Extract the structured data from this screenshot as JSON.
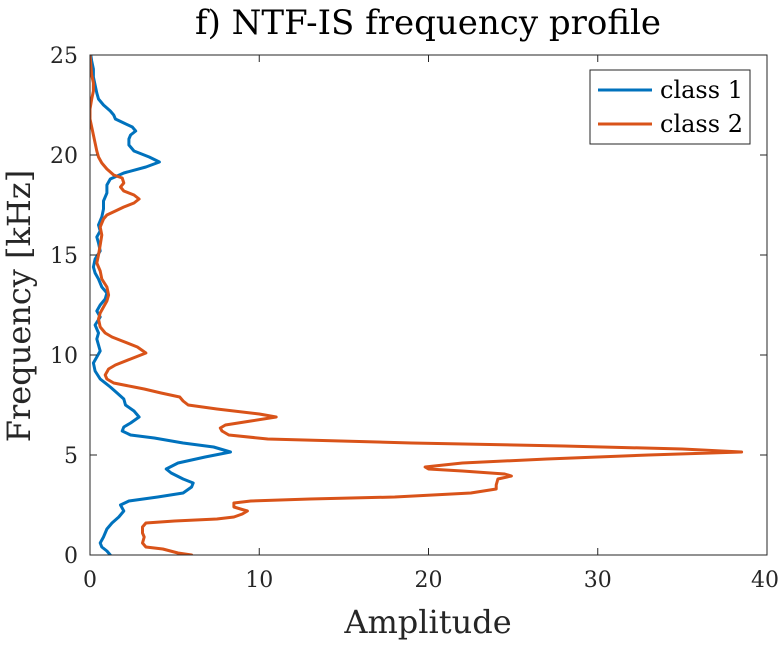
{
  "chart_data": {
    "type": "line",
    "orientation": "x-amplitude-vs-y-frequency",
    "title": "f) NTF-IS frequency profile",
    "xlabel": "Amplitude",
    "ylabel": "Frequency [kHz]",
    "xlim": [
      0,
      40
    ],
    "ylim": [
      0,
      25
    ],
    "xticks": [
      "0",
      "10",
      "20",
      "30",
      "40"
    ],
    "yticks": [
      "0",
      "5",
      "10",
      "15",
      "20",
      "25"
    ],
    "grid": false,
    "legend_position": "top-right",
    "series": [
      {
        "name": "class 1",
        "color": "#0072BD",
        "points": [
          [
            1.2,
            0.0
          ],
          [
            1.0,
            0.2
          ],
          [
            0.7,
            0.4
          ],
          [
            0.6,
            0.6
          ],
          [
            0.8,
            0.9
          ],
          [
            1.0,
            1.3
          ],
          [
            1.3,
            1.6
          ],
          [
            1.7,
            1.9
          ],
          [
            2.0,
            2.2
          ],
          [
            1.8,
            2.5
          ],
          [
            2.3,
            2.7
          ],
          [
            4.0,
            2.9
          ],
          [
            5.5,
            3.1
          ],
          [
            6.0,
            3.4
          ],
          [
            6.1,
            3.6
          ],
          [
            5.5,
            3.8
          ],
          [
            4.8,
            4.1
          ],
          [
            4.5,
            4.3
          ],
          [
            5.2,
            4.6
          ],
          [
            6.8,
            4.9
          ],
          [
            8.3,
            5.15
          ],
          [
            7.3,
            5.4
          ],
          [
            5.5,
            5.6
          ],
          [
            3.8,
            5.85
          ],
          [
            2.4,
            6.0
          ],
          [
            1.9,
            6.2
          ],
          [
            2.0,
            6.4
          ],
          [
            2.4,
            6.6
          ],
          [
            2.9,
            6.9
          ],
          [
            2.6,
            7.2
          ],
          [
            2.1,
            7.5
          ],
          [
            2.0,
            7.8
          ],
          [
            1.6,
            8.1
          ],
          [
            1.2,
            8.4
          ],
          [
            0.6,
            8.8
          ],
          [
            0.3,
            9.2
          ],
          [
            0.2,
            9.6
          ],
          [
            0.4,
            9.9
          ],
          [
            0.6,
            10.2
          ],
          [
            0.5,
            10.5
          ],
          [
            0.4,
            10.8
          ],
          [
            0.5,
            11.1
          ],
          [
            0.3,
            11.5
          ],
          [
            0.6,
            11.9
          ],
          [
            0.4,
            12.2
          ],
          [
            0.6,
            12.5
          ],
          [
            0.9,
            12.8
          ],
          [
            1.0,
            13.1
          ],
          [
            0.7,
            13.4
          ],
          [
            0.5,
            13.8
          ],
          [
            0.3,
            14.1
          ],
          [
            0.2,
            14.4
          ],
          [
            0.3,
            14.8
          ],
          [
            0.6,
            15.2
          ],
          [
            0.5,
            15.6
          ],
          [
            0.4,
            15.9
          ],
          [
            0.6,
            16.2
          ],
          [
            0.5,
            16.5
          ],
          [
            0.7,
            16.9
          ],
          [
            0.8,
            17.3
          ],
          [
            0.8,
            17.7
          ],
          [
            1.0,
            18.1
          ],
          [
            1.0,
            18.5
          ],
          [
            1.2,
            18.8
          ],
          [
            2.0,
            19.1
          ],
          [
            3.3,
            19.4
          ],
          [
            4.1,
            19.65
          ],
          [
            3.5,
            19.9
          ],
          [
            2.6,
            20.2
          ],
          [
            2.3,
            20.5
          ],
          [
            2.3,
            20.8
          ],
          [
            2.4,
            21.0
          ],
          [
            2.7,
            21.2
          ],
          [
            2.5,
            21.4
          ],
          [
            2.0,
            21.6
          ],
          [
            1.5,
            21.8
          ],
          [
            1.4,
            22.0
          ],
          [
            1.2,
            22.2
          ],
          [
            0.8,
            22.5
          ],
          [
            0.5,
            22.8
          ],
          [
            0.4,
            23.1
          ],
          [
            0.3,
            23.5
          ],
          [
            0.2,
            23.9
          ],
          [
            0.2,
            24.3
          ],
          [
            0.1,
            24.7
          ],
          [
            0.05,
            25.0
          ]
        ]
      },
      {
        "name": "class 2",
        "color": "#D95319",
        "points": [
          [
            6.0,
            0.0
          ],
          [
            5.2,
            0.1
          ],
          [
            4.3,
            0.3
          ],
          [
            3.3,
            0.4
          ],
          [
            3.1,
            0.6
          ],
          [
            3.2,
            0.9
          ],
          [
            3.1,
            1.1
          ],
          [
            3.1,
            1.4
          ],
          [
            3.3,
            1.6
          ],
          [
            5.0,
            1.7
          ],
          [
            7.5,
            1.8
          ],
          [
            8.5,
            1.9
          ],
          [
            9.0,
            2.05
          ],
          [
            9.3,
            2.2
          ],
          [
            8.5,
            2.4
          ],
          [
            8.5,
            2.6
          ],
          [
            9.5,
            2.7
          ],
          [
            13.0,
            2.8
          ],
          [
            18.0,
            2.9
          ],
          [
            22.5,
            3.1
          ],
          [
            24.0,
            3.3
          ],
          [
            24.0,
            3.5
          ],
          [
            24.1,
            3.8
          ],
          [
            24.9,
            3.95
          ],
          [
            24.5,
            4.05
          ],
          [
            22.0,
            4.2
          ],
          [
            20.0,
            4.3
          ],
          [
            19.8,
            4.4
          ],
          [
            22.0,
            4.6
          ],
          [
            27.0,
            4.8
          ],
          [
            33.0,
            5.0
          ],
          [
            38.5,
            5.15
          ],
          [
            35.0,
            5.3
          ],
          [
            28.0,
            5.45
          ],
          [
            19.0,
            5.6
          ],
          [
            10.5,
            5.8
          ],
          [
            8.2,
            6.0
          ],
          [
            7.8,
            6.2
          ],
          [
            7.7,
            6.35
          ],
          [
            8.0,
            6.5
          ],
          [
            9.5,
            6.7
          ],
          [
            11.0,
            6.9
          ],
          [
            10.0,
            7.05
          ],
          [
            7.5,
            7.3
          ],
          [
            5.8,
            7.5
          ],
          [
            5.5,
            7.7
          ],
          [
            5.3,
            7.9
          ],
          [
            4.2,
            8.1
          ],
          [
            3.2,
            8.3
          ],
          [
            2.6,
            8.4
          ],
          [
            2.0,
            8.5
          ],
          [
            1.4,
            8.6
          ],
          [
            1.0,
            8.8
          ],
          [
            0.9,
            9.0
          ],
          [
            1.1,
            9.3
          ],
          [
            1.5,
            9.5
          ],
          [
            2.4,
            9.8
          ],
          [
            3.3,
            10.1
          ],
          [
            2.8,
            10.4
          ],
          [
            1.9,
            10.7
          ],
          [
            1.3,
            10.9
          ],
          [
            0.9,
            11.1
          ],
          [
            0.6,
            11.4
          ],
          [
            0.5,
            11.8
          ],
          [
            0.6,
            12.1
          ],
          [
            0.8,
            12.4
          ],
          [
            1.0,
            12.7
          ],
          [
            1.1,
            13.0
          ],
          [
            1.0,
            13.4
          ],
          [
            0.7,
            13.8
          ],
          [
            0.6,
            14.2
          ],
          [
            0.4,
            14.6
          ],
          [
            0.5,
            15.0
          ],
          [
            0.6,
            15.5
          ],
          [
            0.7,
            16.0
          ],
          [
            0.6,
            16.4
          ],
          [
            0.8,
            16.8
          ],
          [
            1.0,
            17.0
          ],
          [
            1.5,
            17.2
          ],
          [
            2.0,
            17.4
          ],
          [
            2.6,
            17.6
          ],
          [
            2.9,
            17.8
          ],
          [
            2.6,
            18.0
          ],
          [
            2.0,
            18.2
          ],
          [
            1.8,
            18.4
          ],
          [
            2.0,
            18.6
          ],
          [
            1.9,
            18.85
          ],
          [
            1.4,
            19.0
          ],
          [
            1.0,
            19.3
          ],
          [
            0.7,
            19.6
          ],
          [
            0.5,
            19.9
          ],
          [
            0.4,
            20.2
          ],
          [
            0.3,
            20.6
          ],
          [
            0.2,
            21.0
          ],
          [
            0.1,
            21.4
          ],
          [
            0.0,
            21.8
          ],
          [
            0.0,
            22.3
          ],
          [
            0.1,
            22.8
          ],
          [
            0.2,
            23.2
          ],
          [
            0.2,
            23.6
          ],
          [
            0.1,
            24.0
          ],
          [
            0.05,
            24.5
          ],
          [
            0.0,
            25.0
          ]
        ]
      }
    ]
  }
}
